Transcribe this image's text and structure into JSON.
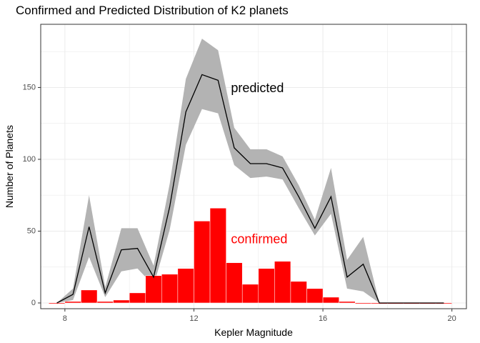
{
  "chart_data": {
    "type": "bar",
    "title": "Confirmed and Predicted Distribution of K2 planets",
    "xlabel": "Kepler Magnitude",
    "ylabel": "Number of Planets",
    "xlim": [
      7.25,
      20.45
    ],
    "ylim": [
      -4,
      194
    ],
    "x_ticks": [
      8,
      12,
      16,
      20
    ],
    "y_ticks": [
      0,
      50,
      100,
      150
    ],
    "grid": true,
    "colors": {
      "confirmed": "#ff0000",
      "predicted_line": "#000000",
      "predicted_band": "#b3b3b3",
      "panel_border": "#333333",
      "grid": "#ebebeb"
    },
    "confirmed": {
      "x": [
        7.75,
        8.25,
        8.75,
        9.25,
        9.75,
        10.25,
        10.75,
        11.25,
        11.75,
        12.25,
        12.75,
        13.25,
        13.75,
        14.25,
        14.75,
        15.25,
        15.75,
        16.25,
        16.75,
        17.25,
        17.75,
        18.25,
        18.75,
        19.25,
        19.75
      ],
      "values": [
        0,
        1,
        9,
        1,
        2,
        7,
        19,
        20,
        24,
        57,
        66,
        28,
        13,
        24,
        29,
        15,
        10,
        4,
        1,
        0,
        0,
        0,
        0,
        0,
        0
      ]
    },
    "predicted": {
      "x": [
        7.75,
        8.25,
        8.75,
        9.25,
        9.75,
        10.25,
        10.75,
        11.25,
        11.75,
        12.25,
        12.75,
        13.25,
        13.75,
        14.25,
        14.75,
        15.25,
        15.75,
        16.25,
        16.75,
        17.25,
        17.75,
        18.25,
        18.75,
        19.25,
        19.75
      ],
      "values": [
        0,
        6,
        53,
        7,
        37,
        38,
        18,
        67,
        133,
        159,
        155,
        108,
        97,
        97,
        94,
        74,
        52,
        74,
        18,
        27,
        0,
        0,
        0,
        0,
        0
      ],
      "lower": [
        0,
        2,
        32,
        4,
        22,
        24,
        12,
        51,
        110,
        135,
        132,
        96,
        87,
        88,
        86,
        66,
        47,
        62,
        10,
        8,
        0,
        0,
        0,
        0,
        0
      ],
      "upper": [
        0,
        10,
        75,
        11,
        52,
        52,
        26,
        83,
        156,
        184,
        176,
        122,
        107,
        107,
        102,
        82,
        58,
        94,
        30,
        46,
        0,
        0,
        0,
        0,
        0
      ]
    },
    "annotations": [
      {
        "text": "predicted",
        "x": 13.15,
        "y": 149,
        "color": "#000000"
      },
      {
        "text": "confirmed",
        "x": 13.15,
        "y": 44,
        "color": "#ff0000"
      }
    ]
  }
}
